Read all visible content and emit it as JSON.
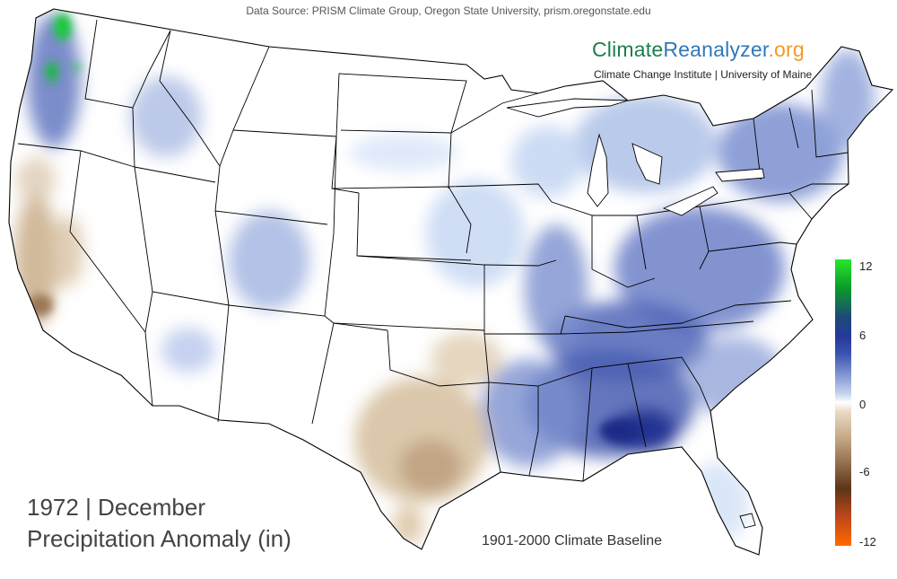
{
  "source": "Data Source: PRISM Climate Group, Oregon State University, prism.oregonstate.edu",
  "brand": {
    "part1": "Climate",
    "part2": "Reanalyzer",
    "part3": ".org",
    "colors": {
      "climate": "#1b7f4c",
      "reanalyzer": "#2f79b7",
      "org": "#f39a21"
    }
  },
  "institution": "Climate Change Institute | University of Maine",
  "title": {
    "year_month": "1972 | December",
    "variable": "Precipitation Anomaly (in)"
  },
  "baseline": "1901-2000 Climate Baseline",
  "colorbar": {
    "ticks": [
      "12",
      "6",
      "0",
      "-6",
      "-12"
    ],
    "range": [
      -12,
      12
    ],
    "colors": {
      "high": "#28e62b",
      "mid_high": "#26389a",
      "zero": "#ffffff",
      "mid_low": "#c6aa89",
      "low": "#ff6a00"
    }
  }
}
